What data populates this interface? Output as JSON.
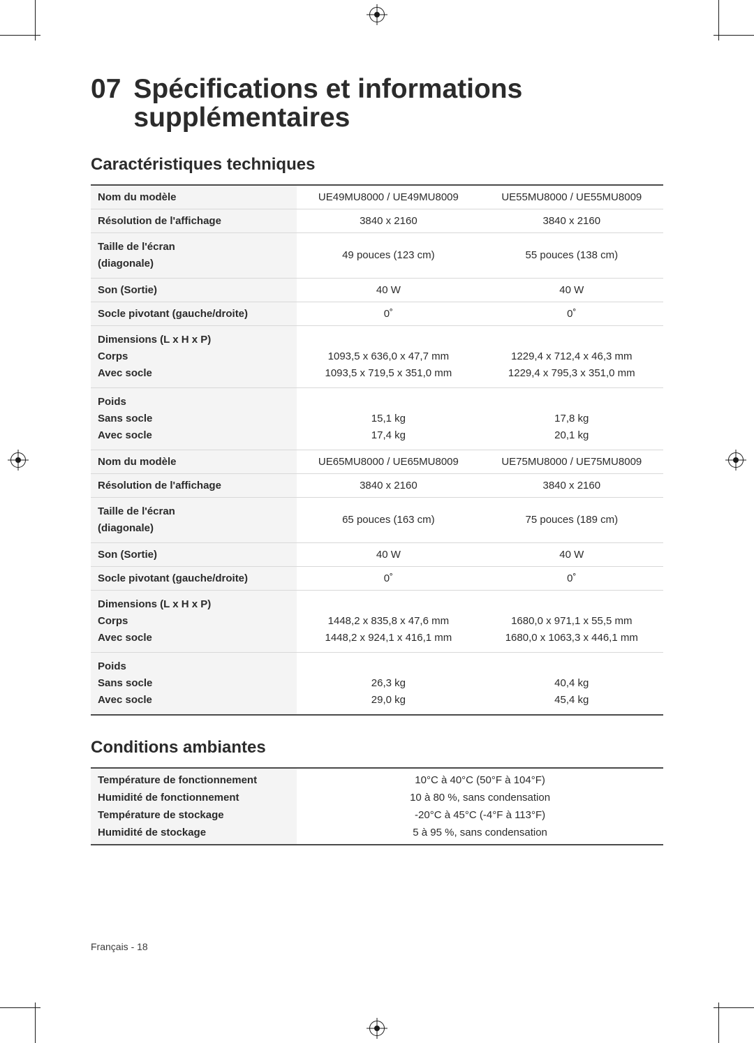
{
  "style": {
    "page_bg": "#ffffff",
    "text_color": "#2b2b2b",
    "row_label_bg": "#f4f4f4",
    "row_border_color": "#d8d8d8",
    "heavy_border_color": "#4a4a4a",
    "h1_fontsize_pt": 29,
    "h2_fontsize_pt": 18,
    "body_fontsize_pt": 11
  },
  "heading": {
    "number": "07",
    "title_line1": "Spécifications et informations",
    "title_line2": "supplémentaires"
  },
  "specs_section_title": "Caractéristiques techniques",
  "spec_rows": [
    {
      "label": "Nom du modèle",
      "col1": "UE49MU8000 / UE49MU8009",
      "col2": "UE55MU8000 / UE55MU8009"
    },
    {
      "label": "Résolution de l'affichage",
      "col1": "3840 x 2160",
      "col2": "3840 x 2160"
    },
    {
      "label": "Taille de l'écran\n(diagonale)",
      "col1": "49 pouces (123 cm)",
      "col2": "55 pouces (138 cm)"
    },
    {
      "label": "Son (Sortie)",
      "col1": "40 W",
      "col2": "40 W"
    },
    {
      "label": "Socle pivotant (gauche/droite)",
      "col1": "0˚",
      "col2": "0˚"
    },
    {
      "label": "Dimensions (L x H x P)\nCorps\nAvec socle",
      "col1": "\n1093,5 x 636,0 x 47,7 mm\n1093,5 x 719,5 x 351,0 mm",
      "col2": "\n1229,4 x 712,4 x 46,3 mm\n1229,4 x 795,3 x 351,0 mm"
    },
    {
      "label": "Poids\nSans socle\nAvec socle",
      "col1": "\n15,1 kg\n17,4 kg",
      "col2": "\n17,8 kg\n20,1 kg"
    },
    {
      "label": "Nom du modèle",
      "col1": "UE65MU8000 / UE65MU8009",
      "col2": "UE75MU8000 / UE75MU8009"
    },
    {
      "label": "Résolution de l'affichage",
      "col1": "3840 x 2160",
      "col2": "3840 x 2160"
    },
    {
      "label": "Taille de l'écran\n(diagonale)",
      "col1": "65 pouces (163 cm)",
      "col2": "75 pouces (189 cm)"
    },
    {
      "label": "Son (Sortie)",
      "col1": "40 W",
      "col2": "40 W"
    },
    {
      "label": "Socle pivotant (gauche/droite)",
      "col1": "0˚",
      "col2": "0˚"
    },
    {
      "label": "Dimensions (L x H x P)\nCorps\nAvec socle",
      "col1": "\n1448,2 x 835,8 x 47,6 mm\n1448,2 x 924,1 x 416,1 mm",
      "col2": "\n1680,0 x 971,1 x 55,5 mm\n1680,0 x 1063,3 x 446,1 mm"
    },
    {
      "label": "Poids\nSans socle\nAvec socle",
      "col1": "\n26,3 kg\n29,0 kg",
      "col2": "\n40,4 kg\n45,4 kg"
    }
  ],
  "env_section_title": "Conditions ambiantes",
  "env_rows": [
    {
      "label": "Température de fonctionnement",
      "value": "10°C à 40°C (50°F à 104°F)"
    },
    {
      "label": "Humidité de fonctionnement",
      "value": "10 à 80 %, sans condensation"
    },
    {
      "label": "Température de stockage",
      "value": "-20°C à 45°C (-4°F à 113°F)"
    },
    {
      "label": "Humidité de stockage",
      "value": "5 à 95 %, sans condensation"
    }
  ],
  "footer": "Français - 18"
}
